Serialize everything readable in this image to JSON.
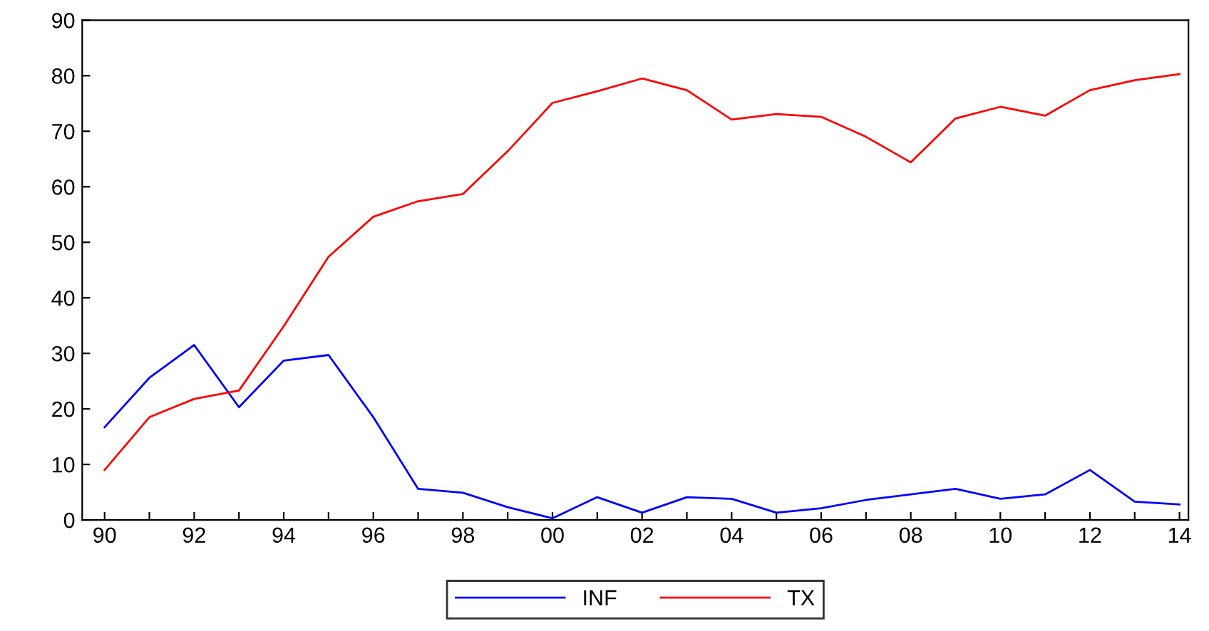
{
  "chart_data": {
    "type": "line",
    "categories": [
      "90",
      null,
      "92",
      null,
      "94",
      null,
      "96",
      null,
      "98",
      null,
      "00",
      null,
      "02",
      null,
      "04",
      null,
      "06",
      null,
      "08",
      null,
      "10",
      null,
      "12",
      null,
      "14"
    ],
    "series": [
      {
        "name": "INF",
        "color": "#0000ff",
        "values": [
          16.7,
          25.6,
          31.5,
          20.3,
          28.7,
          29.7,
          18.5,
          5.6,
          4.9,
          2.3,
          0.3,
          4.1,
          1.3,
          4.1,
          3.8,
          1.3,
          2.1,
          3.6,
          4.6,
          5.6,
          3.8,
          4.6,
          9.0,
          3.3,
          2.8
        ]
      },
      {
        "name": "TX",
        "color": "#ff0000",
        "values": [
          9.0,
          18.5,
          21.8,
          23.3,
          34.9,
          47.4,
          54.6,
          57.4,
          58.7,
          66.4,
          75.1,
          77.2,
          79.5,
          77.4,
          72.1,
          73.1,
          72.6,
          69.0,
          64.4,
          72.3,
          74.4,
          72.8,
          77.4,
          79.2,
          80.3
        ]
      }
    ],
    "ylim": [
      0,
      90
    ],
    "yticks": [
      0,
      10,
      20,
      30,
      40,
      50,
      60,
      70,
      80,
      90
    ],
    "grid": false,
    "legend": "bottom",
    "marker": "none",
    "line_style": "solid"
  }
}
